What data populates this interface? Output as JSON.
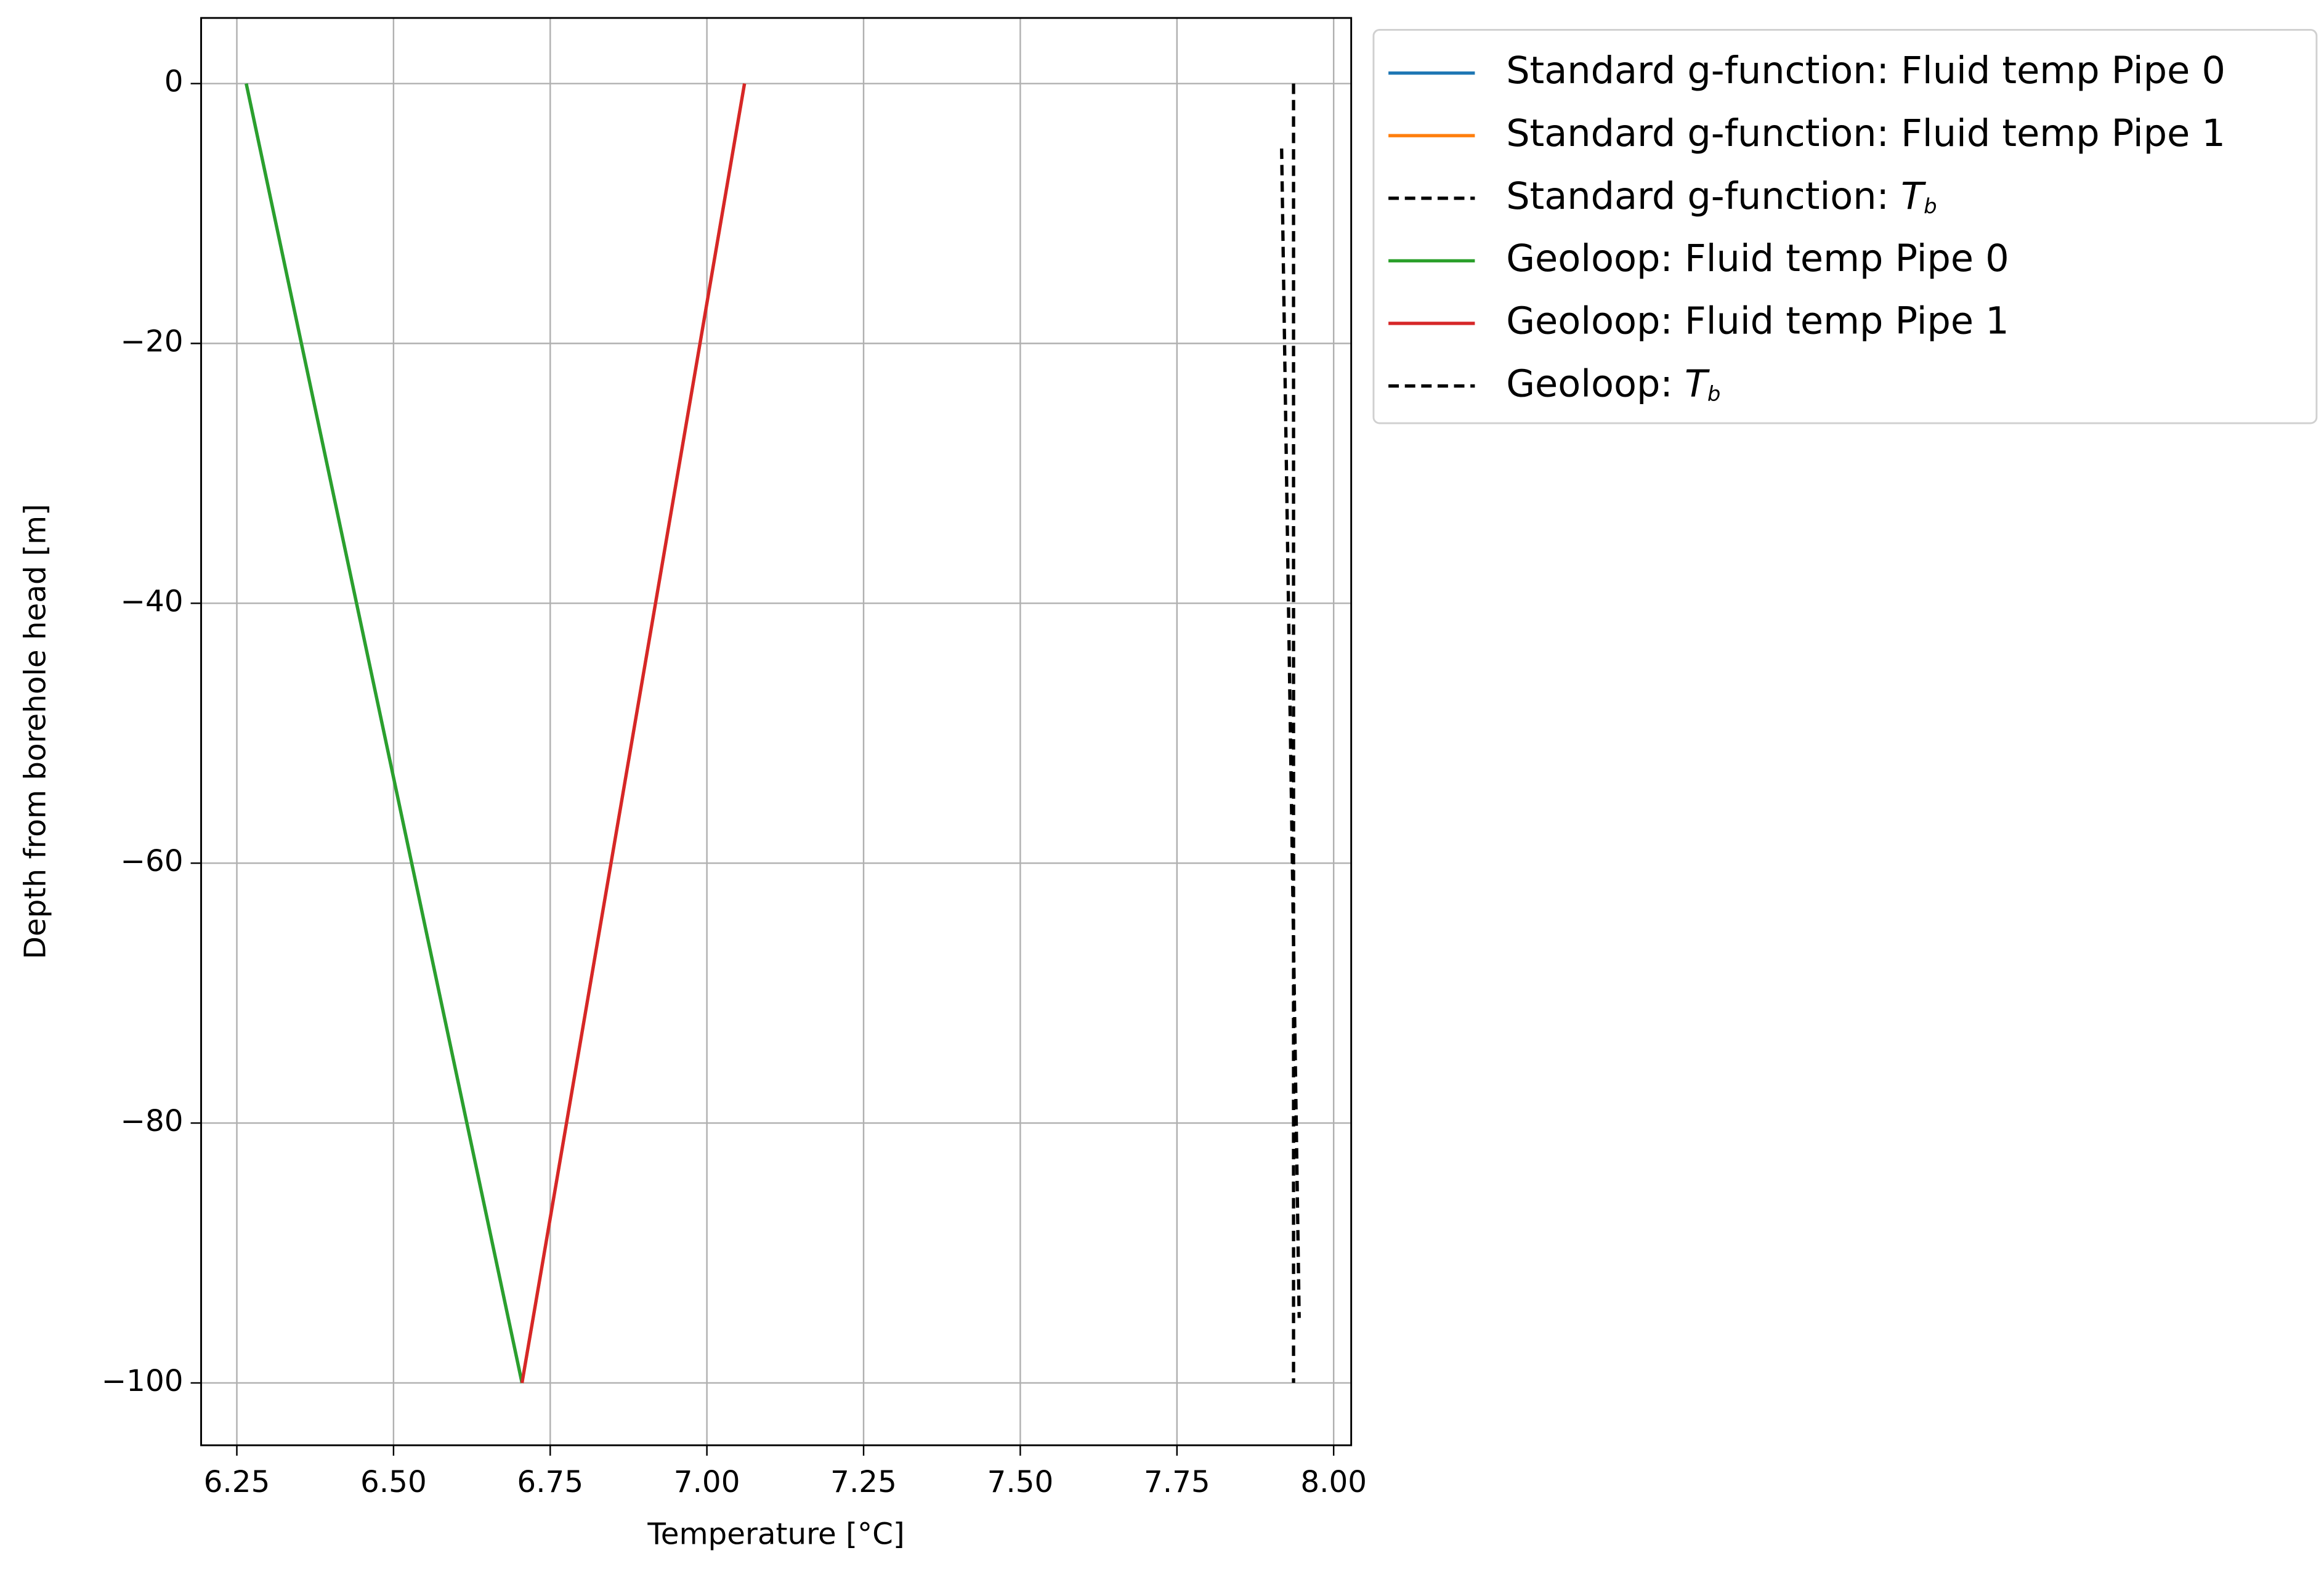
{
  "chart_data": {
    "type": "line",
    "xlabel": "Temperature [°C]",
    "ylabel": "Depth from borehole head [m]",
    "xlim": [
      6.193,
      8.028
    ],
    "ylim": [
      -104.8,
      5.05
    ],
    "xticks": [
      6.25,
      {
        "value": 6.5,
        "label": "6.50"
      },
      6.75,
      {
        "value": 7.0,
        "label": "7.00"
      },
      7.25,
      {
        "value": 7.5,
        "label": "7.50"
      },
      7.75,
      {
        "value": 8.0,
        "label": "8.00"
      }
    ],
    "yticks": [
      0,
      {
        "value": -20,
        "label": "−20"
      },
      {
        "value": -40,
        "label": "−40"
      },
      {
        "value": -60,
        "label": "−60"
      },
      {
        "value": -80,
        "label": "−80"
      },
      {
        "value": -100,
        "label": "−100"
      }
    ],
    "grid": true,
    "legend": "outside-upper-right",
    "series": [
      {
        "name": "Standard g-function: Fluid temp Pipe 0",
        "color": "#1f77b4",
        "linestyle": "solid",
        "x": [
          6.265,
          6.705
        ],
        "values": [
          0,
          -100
        ]
      },
      {
        "name": "Standard g-function: Fluid temp Pipe 1",
        "color": "#ff7f0e",
        "linestyle": "solid",
        "x": [
          7.06,
          6.705
        ],
        "values": [
          0,
          -100
        ]
      },
      {
        "name": "Standard g-function: T_b",
        "color": "#000000",
        "linestyle": "dashed",
        "x": [
          7.917,
          7.945
        ],
        "values": [
          -5,
          -95
        ]
      },
      {
        "name": "Geoloop: Fluid temp Pipe 0",
        "color": "#2ca02c",
        "linestyle": "solid",
        "x": [
          6.265,
          6.705
        ],
        "values": [
          0,
          -100
        ]
      },
      {
        "name": "Geoloop: Fluid temp Pipe 1",
        "color": "#d62728",
        "linestyle": "solid",
        "x": [
          7.06,
          6.705
        ],
        "values": [
          0,
          -100
        ]
      },
      {
        "name": "Geoloop: T_b",
        "color": "#000000",
        "linestyle": "dashed",
        "x": [
          7.936,
          7.936
        ],
        "values": [
          0,
          -100
        ]
      }
    ]
  }
}
